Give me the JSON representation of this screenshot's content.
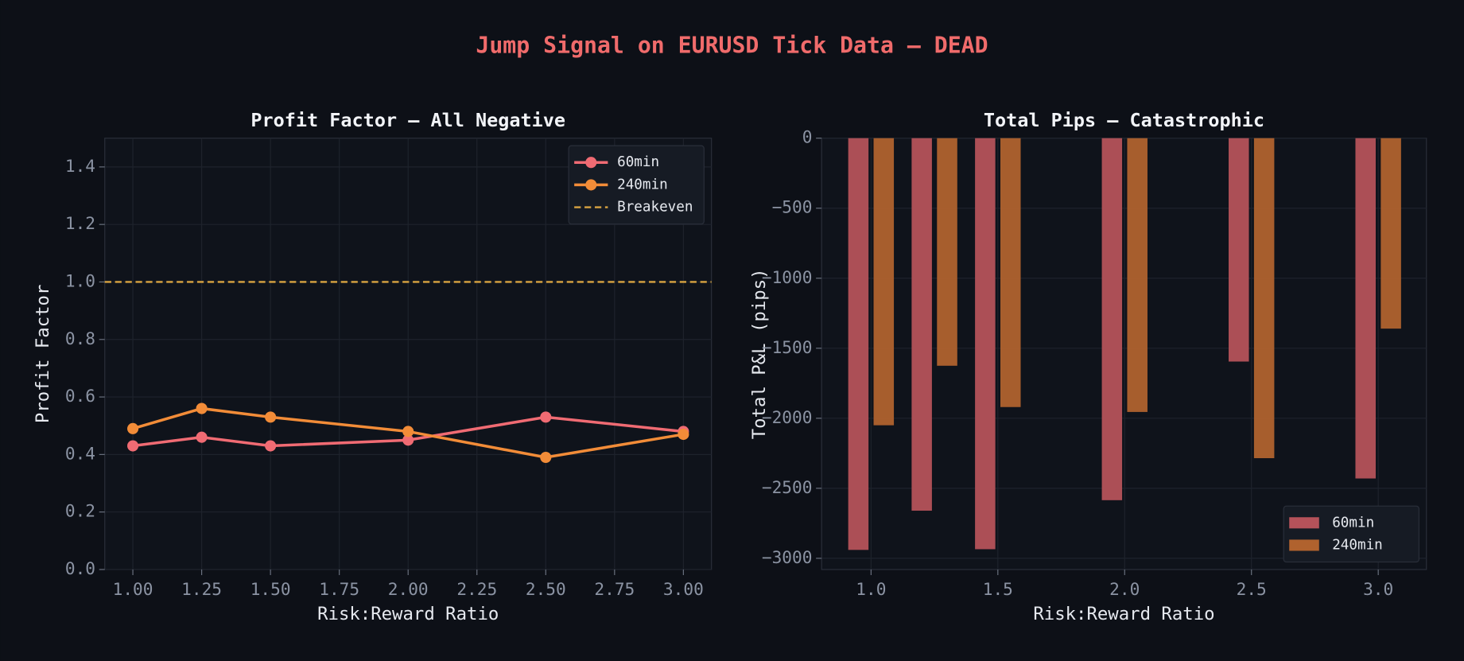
{
  "title": "Jump Signal on EURUSD Tick Data — DEAD",
  "chart_data": [
    {
      "type": "line",
      "title": "Profit Factor — All Negative",
      "x_label": "Risk:Reward Ratio",
      "y_label": "Profit Factor",
      "x": [
        1.0,
        1.25,
        1.5,
        2.0,
        2.5,
        3.0
      ],
      "series": [
        {
          "name": "60min",
          "color": "#f06b73",
          "values": [
            0.43,
            0.46,
            0.43,
            0.45,
            0.53,
            0.48
          ]
        },
        {
          "name": "240min",
          "color": "#f28c38",
          "values": [
            0.49,
            0.56,
            0.53,
            0.48,
            0.39,
            0.47
          ]
        }
      ],
      "reference_lines": [
        {
          "value": 1.0,
          "label": "Breakeven",
          "color": "#d9a441"
        }
      ],
      "xlim": [
        0.898,
        3.102
      ],
      "ylim": [
        0,
        1.5
      ],
      "xticks": [
        {
          "value": 1.0,
          "label": "1.00"
        },
        {
          "value": 1.25,
          "label": "1.25"
        },
        {
          "value": 1.5,
          "label": "1.50"
        },
        {
          "value": 1.75,
          "label": "1.75"
        },
        {
          "value": 2.0,
          "label": "2.00"
        },
        {
          "value": 2.25,
          "label": "2.25"
        },
        {
          "value": 2.5,
          "label": "2.50"
        },
        {
          "value": 2.75,
          "label": "2.75"
        },
        {
          "value": 3.0,
          "label": "3.00"
        }
      ],
      "yticks": [
        {
          "value": 0,
          "label": "0.0"
        },
        {
          "value": 0.2,
          "label": "0.2"
        },
        {
          "value": 0.4,
          "label": "0.4"
        },
        {
          "value": 0.6,
          "label": "0.6"
        },
        {
          "value": 0.8,
          "label": "0.8"
        },
        {
          "value": 1.0,
          "label": "1.0"
        },
        {
          "value": 1.2,
          "label": "1.2"
        },
        {
          "value": 1.4,
          "label": "1.4"
        }
      ],
      "grid": true,
      "legend": "upper right"
    },
    {
      "type": "bar",
      "title": "Total Pips — Catastrophic",
      "x_label": "Risk:Reward Ratio",
      "y_label": "Total P&L (pips)",
      "x": [
        1.0,
        1.25,
        1.5,
        2.0,
        2.5,
        3.0
      ],
      "series": [
        {
          "name": "60min",
          "color": "#b5525a",
          "values": [
            -2940,
            -2660,
            -2935,
            -2585,
            -1595,
            -2430
          ]
        },
        {
          "name": "240min",
          "color": "#b0622e",
          "values": [
            -2050,
            -1625,
            -1920,
            -1955,
            -2285,
            -1360
          ]
        }
      ],
      "xlim": [
        0.805,
        3.19
      ],
      "ylim": [
        -3080,
        0
      ],
      "xticks": [
        {
          "value": 1.0,
          "label": "1.0"
        },
        {
          "value": 1.5,
          "label": "1.5"
        },
        {
          "value": 2.0,
          "label": "2.0"
        },
        {
          "value": 2.5,
          "label": "2.5"
        },
        {
          "value": 3.0,
          "label": "3.0"
        }
      ],
      "yticks": [
        0,
        {
          "value": -500,
          "label": "−500"
        },
        {
          "value": -1000,
          "label": "−1000"
        },
        {
          "value": -1500,
          "label": "−1500"
        },
        {
          "value": -2000,
          "label": "−2000"
        },
        {
          "value": -2500,
          "label": "−2500"
        },
        {
          "value": -3000,
          "label": "−3000"
        }
      ],
      "grid": true,
      "legend": "lower right"
    }
  ]
}
